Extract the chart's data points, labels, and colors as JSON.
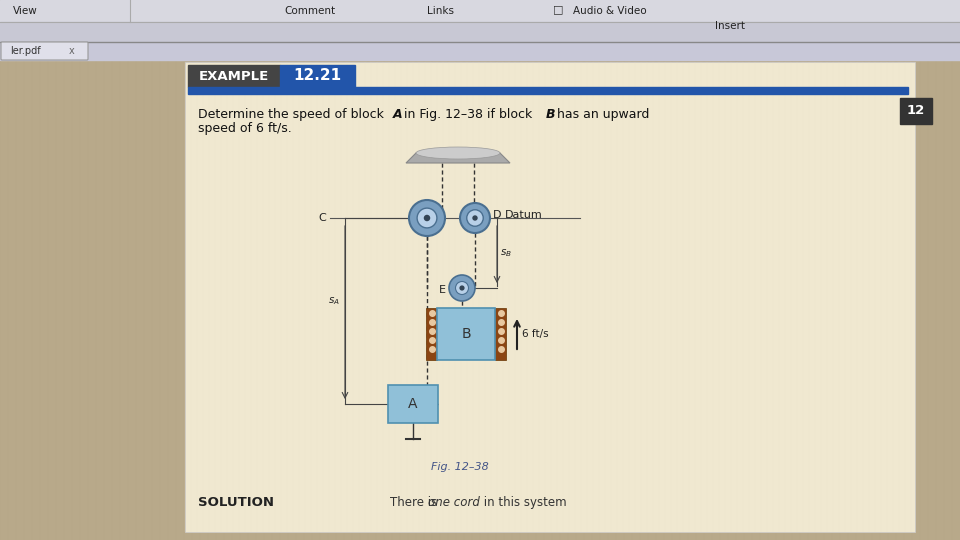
{
  "bg_color": "#b8a98a",
  "page_bg": "#f0e8d0",
  "toolbar_bg": "#d8d8e0",
  "toolbar_bg2": "#c8c8d4",
  "header_dark": "#333333",
  "header_blue": "#2255aa",
  "page_number": "12",
  "example_label": "EXAMPLE",
  "example_number": "12.21",
  "problem_line1": "Determine the speed of block ",
  "problem_line1b": "A",
  "problem_line1c": " in Fig. 12–38 if block ",
  "problem_line1d": "B",
  "problem_line1e": " has an upward",
  "problem_line2": "speed of 6 ft/s.",
  "fig_caption": "Fig. 12–38",
  "solution_label": "SOLUTION",
  "solution_text": "There is ",
  "solution_italic": "one cord",
  "solution_text2": " in this system",
  "tab_text": "ler.pdf",
  "ceiling_color": "#999999",
  "ceiling_top_color": "#cccccc",
  "pulley_outer": "#7a9fc0",
  "pulley_rim": "#4a6f90",
  "pulley_inner": "#b8d0e8",
  "pulley_center": "#334455",
  "block_color": "#90c0d8",
  "block_edge": "#5090b0",
  "chain_color": "#8b4513",
  "chain_dot": "#e8c8a0",
  "rope_color": "#333333",
  "dim_color": "#444444",
  "arrow_color": "#222222",
  "text_color": "#222222",
  "datum_color": "#555555"
}
